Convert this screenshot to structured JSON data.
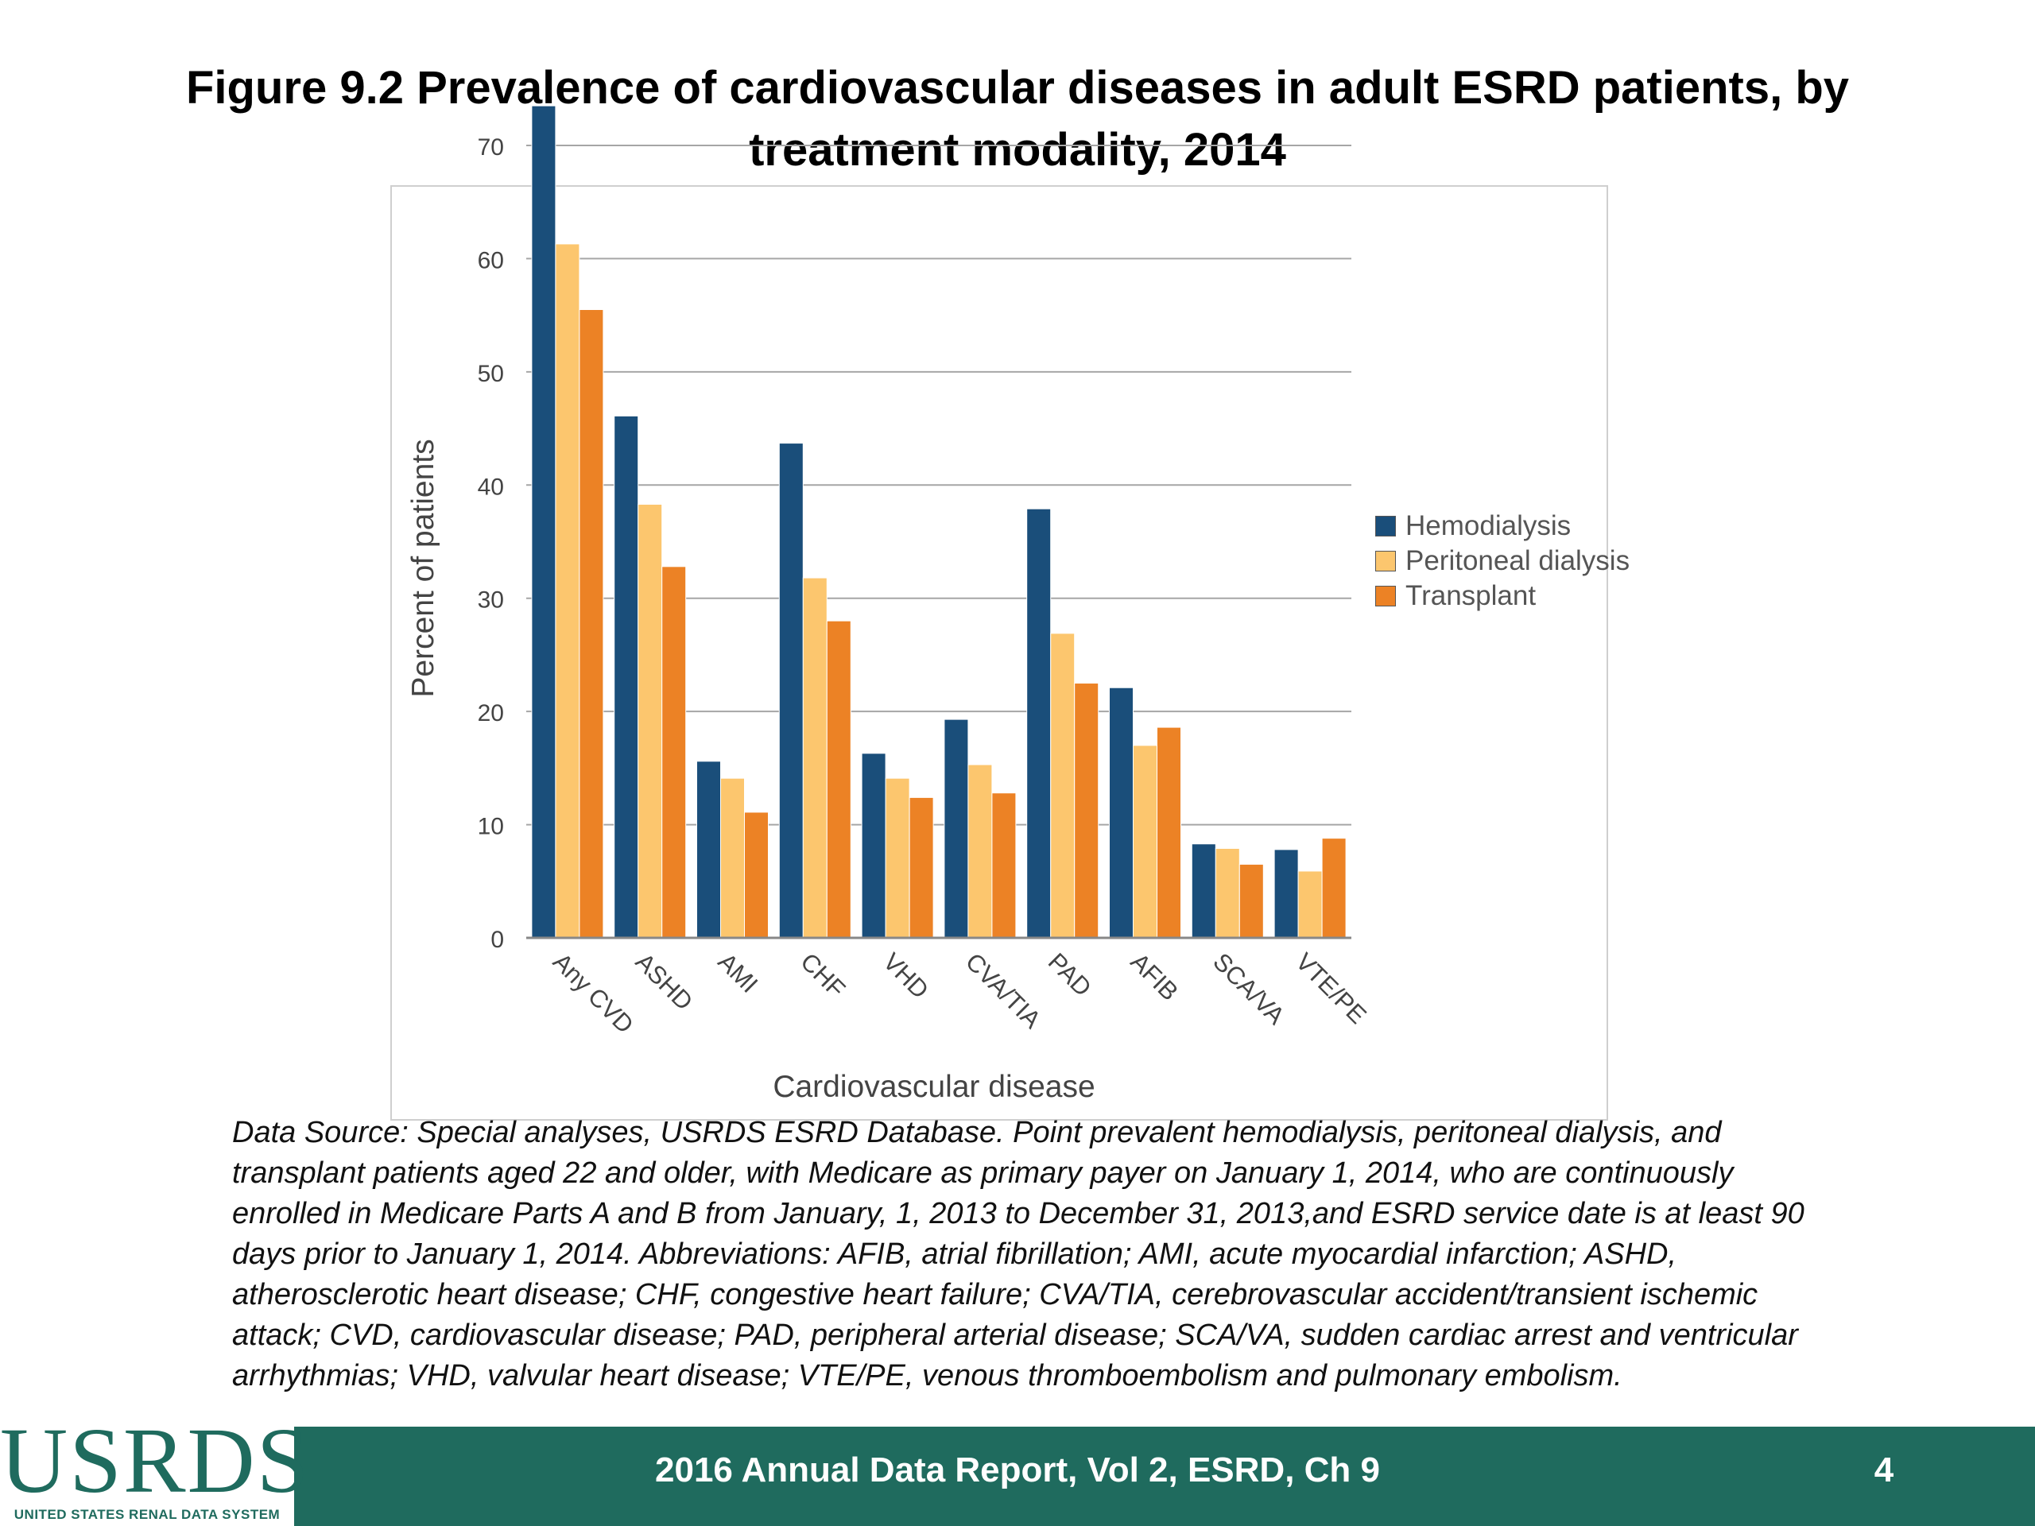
{
  "title": "Figure 9.2 Prevalence of cardiovascular diseases in adult ESRD patients, by treatment modality, 2014",
  "chart_data": {
    "type": "bar",
    "xlabel": "Cardiovascular disease",
    "ylabel": "Percent of patients",
    "ylim": [
      0,
      70
    ],
    "yticks": [
      0,
      10,
      20,
      30,
      40,
      50,
      60,
      70
    ],
    "grid": true,
    "legend_position": "right",
    "categories": [
      "Any CVD",
      "ASHD",
      "AMI",
      "CHF",
      "VHD",
      "CVA/TIA",
      "PAD",
      "AFIB",
      "SCA/VA",
      "VTE/PE"
    ],
    "series": [
      {
        "name": "Hemodialysis",
        "color": "#1a4e7a",
        "values": [
          73.5,
          46.1,
          15.6,
          43.7,
          16.3,
          19.3,
          37.9,
          22.1,
          8.3,
          7.8
        ]
      },
      {
        "name": "Peritoneal dialysis",
        "color": "#fcc66e",
        "values": [
          61.3,
          38.3,
          14.1,
          31.8,
          14.1,
          15.3,
          26.9,
          17.0,
          7.9,
          5.9
        ]
      },
      {
        "name": "Transplant",
        "color": "#ec8225",
        "values": [
          55.5,
          32.8,
          11.1,
          28.0,
          12.4,
          12.8,
          22.5,
          18.6,
          6.5,
          8.8
        ]
      }
    ]
  },
  "source_note": "Data Source: Special analyses, USRDS ESRD Database. Point prevalent hemodialysis, peritoneal dialysis, and transplant patients aged 22 and older, with Medicare as primary payer on January 1, 2014, who are continuously enrolled in Medicare Parts A and B from January, 1, 2013 to December 31, 2013,and ESRD service date is at least 90 days prior to January 1, 2014. Abbreviations: AFIB, atrial fibrillation; AMI, acute myocardial infarction; ASHD, atherosclerotic heart disease; CHF, congestive heart failure; CVA/TIA, cerebrovascular accident/transient ischemic attack; CVD, cardiovascular disease; PAD, peripheral arterial disease; SCA/VA, sudden cardiac arrest and ventricular arrhythmias; VHD, valvular heart disease; VTE/PE, venous thromboembolism and pulmonary embolism.",
  "footer": {
    "logo": "USRDS",
    "logo_subtitle": "UNITED STATES RENAL DATA SYSTEM",
    "report": "2016 Annual Data Report, Vol 2, ESRD, Ch 9",
    "page": "4"
  }
}
